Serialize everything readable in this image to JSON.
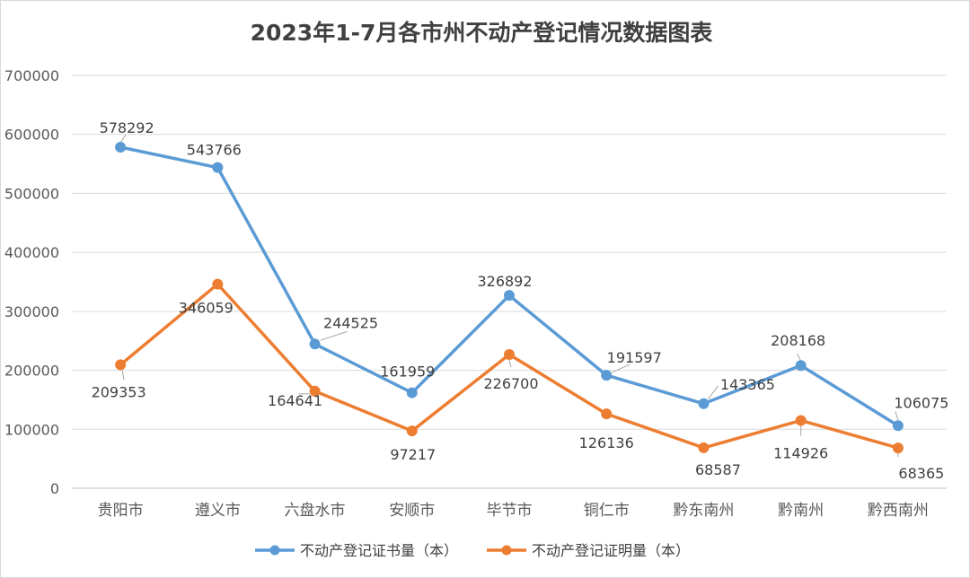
{
  "chart_data": {
    "type": "line",
    "title": "2023年1-7月各市州不动产登记情况数据图表",
    "categories": [
      "贵阳市",
      "遵义市",
      "六盘水市",
      "安顺市",
      "毕节市",
      "铜仁市",
      "黔东南州",
      "黔南州",
      "黔西南州"
    ],
    "ylim": [
      0,
      700000
    ],
    "yticks": [
      "0",
      "100000",
      "200000",
      "300000",
      "400000",
      "500000",
      "600000",
      "700000"
    ],
    "grid": true,
    "legend_position": "bottom",
    "series": [
      {
        "name": "不动产登记证书量（本）",
        "color": "#5B9BD5",
        "values": [
          578292,
          543766,
          244525,
          161959,
          326892,
          191597,
          143365,
          208168,
          106075
        ],
        "labels": [
          "578292",
          "543766",
          "244525",
          "161959",
          "326892",
          "191597",
          "143365",
          "208168",
          "106075"
        ]
      },
      {
        "name": "不动产登记证明量（本）",
        "color": "#ED7D31",
        "values": [
          209353,
          346059,
          164641,
          97217,
          226700,
          126136,
          68587,
          114926,
          68365
        ],
        "labels": [
          "209353",
          "346059",
          "164641",
          "97217",
          "226700",
          "126136",
          "68587",
          "114926",
          "68365"
        ]
      }
    ]
  }
}
